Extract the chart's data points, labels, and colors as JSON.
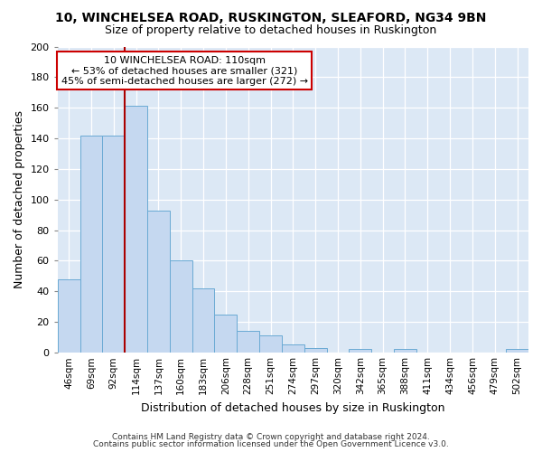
{
  "title": "10, WINCHELSEA ROAD, RUSKINGTON, SLEAFORD, NG34 9BN",
  "subtitle": "Size of property relative to detached houses in Ruskington",
  "xlabel": "Distribution of detached houses by size in Ruskington",
  "ylabel": "Number of detached properties",
  "bin_labels": [
    "46sqm",
    "69sqm",
    "92sqm",
    "114sqm",
    "137sqm",
    "160sqm",
    "183sqm",
    "206sqm",
    "228sqm",
    "251sqm",
    "274sqm",
    "297sqm",
    "320sqm",
    "342sqm",
    "365sqm",
    "388sqm",
    "411sqm",
    "434sqm",
    "456sqm",
    "479sqm",
    "502sqm"
  ],
  "bar_values": [
    48,
    142,
    142,
    161,
    93,
    60,
    42,
    25,
    14,
    11,
    5,
    3,
    0,
    2,
    0,
    2,
    0,
    0,
    0,
    0,
    2
  ],
  "bar_color": "#c5d8f0",
  "bar_edge_color": "#6aaad4",
  "bar_width": 1.0,
  "vline_x_index": 3,
  "vline_color": "#aa0000",
  "ylim": [
    0,
    200
  ],
  "yticks": [
    0,
    20,
    40,
    60,
    80,
    100,
    120,
    140,
    160,
    180,
    200
  ],
  "annotation_title": "10 WINCHELSEA ROAD: 110sqm",
  "annotation_line1": "← 53% of detached houses are smaller (321)",
  "annotation_line2": "45% of semi-detached houses are larger (272) →",
  "annotation_box_color": "#ffffff",
  "annotation_box_edge": "#cc0000",
  "footnote1": "Contains HM Land Registry data © Crown copyright and database right 2024.",
  "footnote2": "Contains public sector information licensed under the Open Government Licence v3.0.",
  "fig_bg_color": "#ffffff",
  "plot_bg_color": "#dce8f5"
}
